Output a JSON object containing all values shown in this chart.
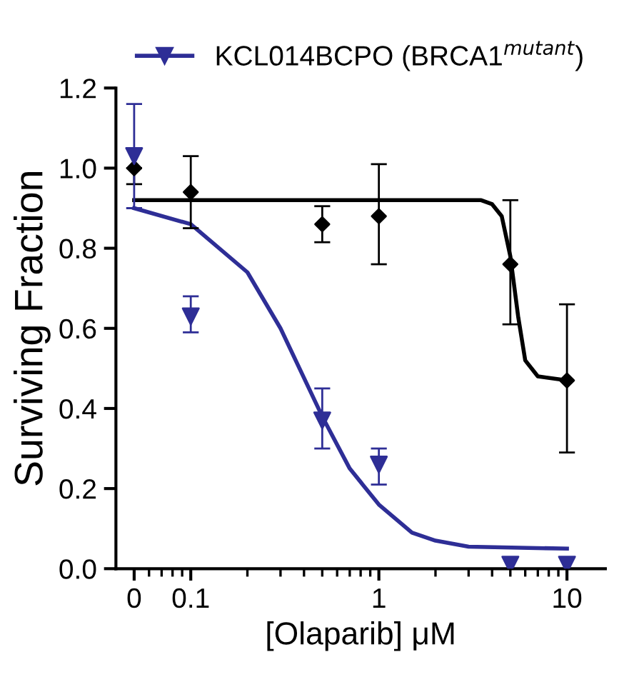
{
  "chart_data": {
    "type": "scatter",
    "xlabel": "[Olaparib] μM",
    "ylabel": "Surviving Fraction",
    "log": "x",
    "legend": "top",
    "grid": false,
    "xlim": [
      0.04,
      16
    ],
    "xticks": [
      {
        "value": 0.05,
        "label": "0"
      },
      0.1,
      1,
      10
    ],
    "ylim": [
      0,
      1.2
    ],
    "yticks": [
      {
        "value": 0,
        "label": "0.0"
      },
      0.2,
      0.4,
      0.6,
      0.8,
      {
        "value": 1,
        "label": "1.0"
      },
      1.2
    ],
    "series": [
      {
        "type": "line",
        "color": "#000000",
        "x": [
          0.05,
          1,
          3.5,
          4,
          4.5,
          5,
          5.5,
          6,
          7,
          10
        ],
        "values": [
          0.92,
          0.92,
          0.92,
          0.91,
          0.88,
          0.78,
          0.63,
          0.52,
          0.48,
          0.47
        ]
      },
      {
        "type": "line",
        "color": "#2e2e96",
        "x": [
          0.05,
          0.1,
          0.2,
          0.3,
          0.5,
          0.7,
          1,
          1.5,
          2,
          3,
          10
        ],
        "values": [
          0.9,
          0.86,
          0.74,
          0.6,
          0.38,
          0.25,
          0.16,
          0.09,
          0.07,
          0.055,
          0.05
        ]
      },
      {
        "marker": "diamond",
        "color": "#000000",
        "x": [
          0.05,
          0.1,
          0.5,
          1,
          5,
          10
        ],
        "values": [
          1.0,
          0.94,
          0.86,
          0.88,
          0.76,
          0.47
        ],
        "errors": [
          [
            0.96,
            1.0
          ],
          [
            0.85,
            1.03
          ],
          [
            0.815,
            0.905
          ],
          [
            0.76,
            1.01
          ],
          [
            0.61,
            0.92
          ],
          [
            0.29,
            0.66
          ]
        ]
      },
      {
        "marker": "triangle",
        "name": "KCL014BCPO (BRCA1$^{mutant}$)",
        "color": "#2e2e96",
        "x": [
          0.05,
          0.1,
          0.5,
          1,
          5,
          10
        ],
        "values": [
          1.03,
          0.63,
          0.37,
          0.26,
          0.01,
          0.01
        ],
        "errors": [
          [
            0.9,
            1.16
          ],
          [
            0.59,
            0.68
          ],
          [
            0.3,
            0.45
          ],
          [
            0.21,
            0.3
          ],
          null,
          null
        ]
      }
    ]
  }
}
